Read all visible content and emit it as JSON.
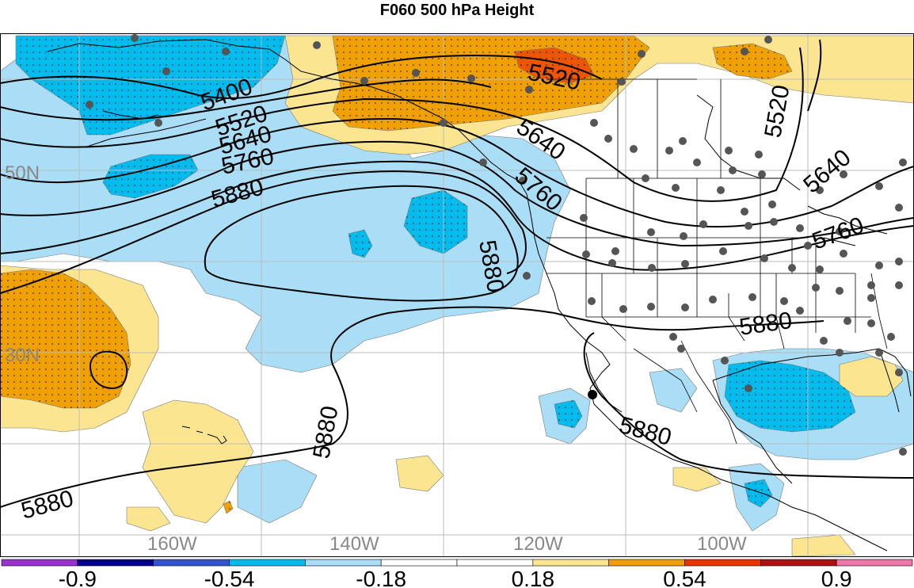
{
  "title": "F060 500 hPa Height",
  "lat_labels": [
    "50N",
    "30N"
  ],
  "lon_labels": [
    "160W",
    "140W",
    "120W",
    "100W"
  ],
  "contour_labels": [
    "5400",
    "5520",
    "5640",
    "5760",
    "5880",
    "5520",
    "5640",
    "5760",
    "5880",
    "5520",
    "5640",
    "5760",
    "5880",
    "5880",
    "5880",
    "5880"
  ],
  "colorbar": {
    "tick_labels": [
      "-0.9",
      "-0.54",
      "-0.18",
      "0.18",
      "0.54",
      "0.9"
    ],
    "colors": [
      "#9933cc",
      "#000088",
      "#3355cc",
      "#00bbee",
      "#aaddf6",
      "#ffffff",
      "#ffffff",
      "#fbe590",
      "#f0a000",
      "#ee3300",
      "#aa1111",
      "#ee77aa"
    ]
  },
  "colors": {
    "deep_blue": "#00bbee",
    "light_blue": "#aaddf6",
    "light_yellow": "#fbe590",
    "orange": "#f0a000",
    "red_orange": "#ee5500",
    "grid": "#bbbbbb",
    "station_dot": "#555555"
  }
}
